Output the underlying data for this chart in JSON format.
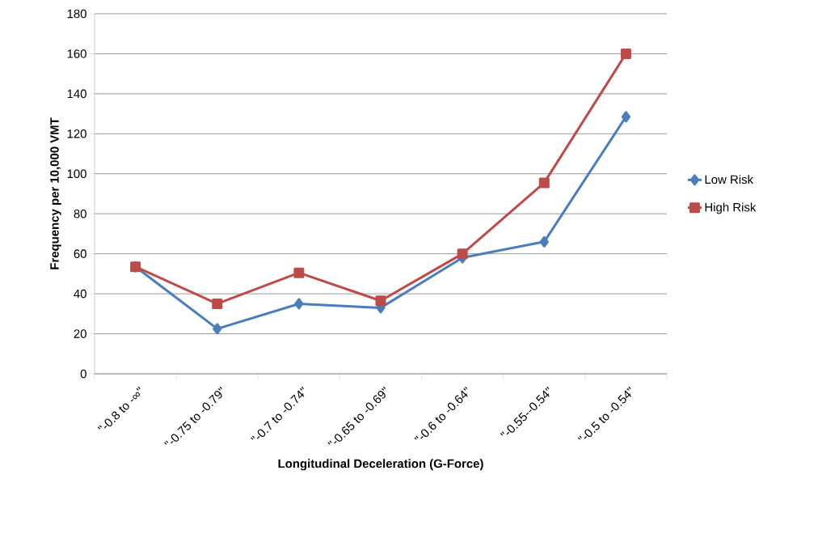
{
  "chart_data": {
    "type": "line",
    "xlabel": "Longitudinal Deceleration (G-Force)",
    "ylabel": "Frequency per 10,000 VMT",
    "categories": [
      "\"-0.8 to -∞\"",
      "\"-0.75 to -0.79\"",
      "\"-0.7 to -0.74\"",
      "\"-0.65 to -0.69\"",
      "\"-0.6 to -0.64\"",
      "\"-0.55--0.54\"",
      "\"-0.5 to -0.54\""
    ],
    "series": [
      {
        "name": "Low Risk",
        "color": "#4a7ebb",
        "marker": "diamond",
        "values": [
          53.5,
          22.5,
          35,
          33,
          58,
          66,
          128.5
        ]
      },
      {
        "name": "High Risk",
        "color": "#be4b48",
        "marker": "square",
        "values": [
          53.5,
          35,
          50.5,
          36.5,
          60,
          95.5,
          160
        ]
      }
    ],
    "ylim": [
      0,
      180
    ],
    "yticks": [
      0,
      20,
      40,
      60,
      80,
      100,
      120,
      140,
      160,
      180
    ],
    "grid": "y",
    "legend": "right"
  }
}
